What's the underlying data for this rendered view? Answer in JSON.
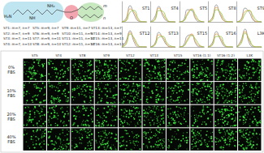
{
  "structure": {
    "labels": [
      "H₂N",
      "NH",
      "NH₂",
      "O"
    ],
    "chain_labels": [
      "m",
      "n"
    ],
    "compounds": [
      "ST1: m=7, n=7",
      "ST5: m=9, n=7",
      "ST9: m=11, n=7",
      "ST13: m=13, n=7",
      "ST2: m=7, n=9",
      "ST6: m=9, n=9",
      "ST10: m=11, n=9",
      "ST14: m=13, n=9",
      "ST3: m=7, n=11",
      "ST7: m=9, n=11",
      "ST11: m=11, n=11",
      "ST15: m=13, n=11",
      "ST4: m=7, n=13",
      "ST8: m=9, n=13",
      "ST12: m=11, n=13",
      "ST16: m=13, n=13"
    ]
  },
  "chart_data": [
    {
      "type": "line",
      "title": "ST1",
      "x": [
        0,
        100,
        200,
        300,
        400,
        500,
        600
      ],
      "xlim": [
        0,
        600
      ],
      "ylim": [
        0,
        25
      ],
      "tick_labels": false,
      "series": [
        {
          "color": "#8c8c8c",
          "values": [
            0,
            4,
            20,
            9,
            1,
            0,
            0
          ]
        },
        {
          "color": "#e8a040",
          "values": [
            0,
            2,
            16,
            12,
            2,
            0,
            0
          ]
        },
        {
          "color": "#8bc34a",
          "values": [
            0,
            1,
            12,
            14,
            4,
            0,
            0
          ]
        }
      ]
    },
    {
      "type": "line",
      "title": "ST4",
      "x": [
        0,
        100,
        200,
        300,
        400,
        500,
        600
      ],
      "xlim": [
        0,
        600
      ],
      "ylim": [
        0,
        25
      ],
      "tick_labels": false,
      "series": [
        {
          "color": "#8c8c8c",
          "values": [
            0,
            6,
            19,
            7,
            1,
            0,
            0
          ]
        },
        {
          "color": "#e8a040",
          "values": [
            0,
            3,
            17,
            10,
            2,
            0,
            0
          ]
        },
        {
          "color": "#8bc34a",
          "values": [
            0,
            2,
            14,
            13,
            3,
            0,
            0
          ]
        }
      ]
    },
    {
      "type": "line",
      "title": "ST5",
      "x": [
        0,
        100,
        200,
        300,
        400,
        500,
        600
      ],
      "xlim": [
        0,
        600
      ],
      "ylim": [
        0,
        25
      ],
      "tick_labels": false,
      "series": [
        {
          "color": "#8c8c8c",
          "values": [
            0,
            2,
            15,
            14,
            3,
            0,
            0
          ]
        },
        {
          "color": "#e8a040",
          "values": [
            0,
            1,
            11,
            16,
            5,
            1,
            0
          ]
        },
        {
          "color": "#8bc34a",
          "values": [
            0,
            1,
            9,
            15,
            8,
            1,
            0
          ]
        }
      ]
    },
    {
      "type": "line",
      "title": "ST8",
      "x": [
        0,
        100,
        200,
        300,
        400,
        500,
        600
      ],
      "xlim": [
        0,
        600
      ],
      "ylim": [
        0,
        25
      ],
      "tick_labels": false,
      "series": [
        {
          "color": "#8c8c8c",
          "values": [
            0,
            5,
            21,
            8,
            1,
            0,
            0
          ]
        },
        {
          "color": "#e8a040",
          "values": [
            0,
            4,
            18,
            10,
            1,
            0,
            0
          ]
        },
        {
          "color": "#8bc34a",
          "values": [
            0,
            2,
            15,
            12,
            3,
            0,
            0
          ]
        }
      ]
    },
    {
      "type": "line",
      "title": "ST9",
      "x": [
        0,
        100,
        200,
        300,
        400,
        500,
        600
      ],
      "xlim": [
        0,
        600
      ],
      "ylim": [
        0,
        25
      ],
      "tick_labels": false,
      "series": [
        {
          "color": "#8c8c8c",
          "values": [
            0,
            3,
            17,
            12,
            2,
            0,
            0
          ]
        },
        {
          "color": "#e8a040",
          "values": [
            0,
            2,
            13,
            14,
            4,
            0,
            0
          ]
        },
        {
          "color": "#8bc34a",
          "values": [
            0,
            1,
            10,
            14,
            7,
            1,
            0
          ]
        }
      ]
    },
    {
      "type": "line",
      "title": "ST12",
      "x": [
        0,
        100,
        200,
        300,
        400,
        500,
        600
      ],
      "xlim": [
        0,
        600
      ],
      "ylim": [
        0,
        25
      ],
      "tick_labels": false,
      "series": [
        {
          "color": "#8c8c8c",
          "values": [
            0,
            7,
            20,
            6,
            0,
            0,
            0
          ]
        },
        {
          "color": "#e8a040",
          "values": [
            0,
            5,
            18,
            9,
            1,
            0,
            0
          ]
        },
        {
          "color": "#8bc34a",
          "values": [
            0,
            3,
            16,
            11,
            2,
            0,
            0
          ]
        }
      ]
    },
    {
      "type": "line",
      "title": "ST13",
      "x": [
        0,
        100,
        200,
        300,
        400,
        500,
        600
      ],
      "xlim": [
        0,
        600
      ],
      "ylim": [
        0,
        25
      ],
      "tick_labels": false,
      "series": [
        {
          "color": "#8c8c8c",
          "values": [
            0,
            4,
            18,
            10,
            2,
            0,
            0
          ]
        },
        {
          "color": "#e8a040",
          "values": [
            0,
            3,
            15,
            12,
            3,
            0,
            0
          ]
        },
        {
          "color": "#8bc34a",
          "values": [
            0,
            2,
            12,
            13,
            5,
            1,
            0
          ]
        }
      ]
    },
    {
      "type": "line",
      "title": "ST15",
      "x": [
        0,
        100,
        200,
        300,
        400,
        500,
        600
      ],
      "xlim": [
        0,
        600
      ],
      "ylim": [
        0,
        25
      ],
      "tick_labels": false,
      "series": [
        {
          "color": "#8c8c8c",
          "values": [
            0,
            2,
            14,
            15,
            4,
            0,
            0
          ]
        },
        {
          "color": "#e8a040",
          "values": [
            0,
            1,
            10,
            16,
            6,
            1,
            0
          ]
        },
        {
          "color": "#8bc34a",
          "values": [
            0,
            1,
            8,
            14,
            9,
            2,
            0
          ]
        }
      ]
    },
    {
      "type": "line",
      "title": "ST16",
      "x": [
        0,
        100,
        200,
        300,
        400,
        500,
        600
      ],
      "xlim": [
        0,
        600
      ],
      "ylim": [
        0,
        25
      ],
      "tick_labels": false,
      "series": [
        {
          "color": "#8c8c8c",
          "values": [
            0,
            5,
            19,
            9,
            1,
            0,
            0
          ]
        },
        {
          "color": "#e8a040",
          "values": [
            0,
            3,
            16,
            11,
            2,
            0,
            0
          ]
        },
        {
          "color": "#8bc34a",
          "values": [
            0,
            2,
            13,
            13,
            3,
            0,
            0
          ]
        }
      ]
    },
    {
      "type": "line",
      "title": "L3K",
      "x": [
        0,
        100,
        200,
        300,
        400,
        500,
        600
      ],
      "xlim": [
        0,
        600
      ],
      "ylim": [
        0,
        25
      ],
      "tick_labels": false,
      "series": [
        {
          "color": "#8c8c8c",
          "values": [
            0,
            8,
            22,
            5,
            0,
            0,
            0
          ]
        },
        {
          "color": "#e8a040",
          "values": [
            0,
            6,
            19,
            8,
            1,
            0,
            0
          ]
        },
        {
          "color": "#8bc34a",
          "values": [
            0,
            4,
            17,
            10,
            1,
            0,
            0
          ]
        }
      ]
    }
  ],
  "microscopy": {
    "columns": [
      "ST5",
      "ST4",
      "ST8",
      "ST9",
      "ST12",
      "ST13",
      "ST15",
      "ST16 (1:1)",
      "ST16 (1:2)",
      "L3K"
    ],
    "rows": [
      "0% FBS",
      "10% FBS",
      "20% FBS",
      "40% FBS"
    ]
  }
}
